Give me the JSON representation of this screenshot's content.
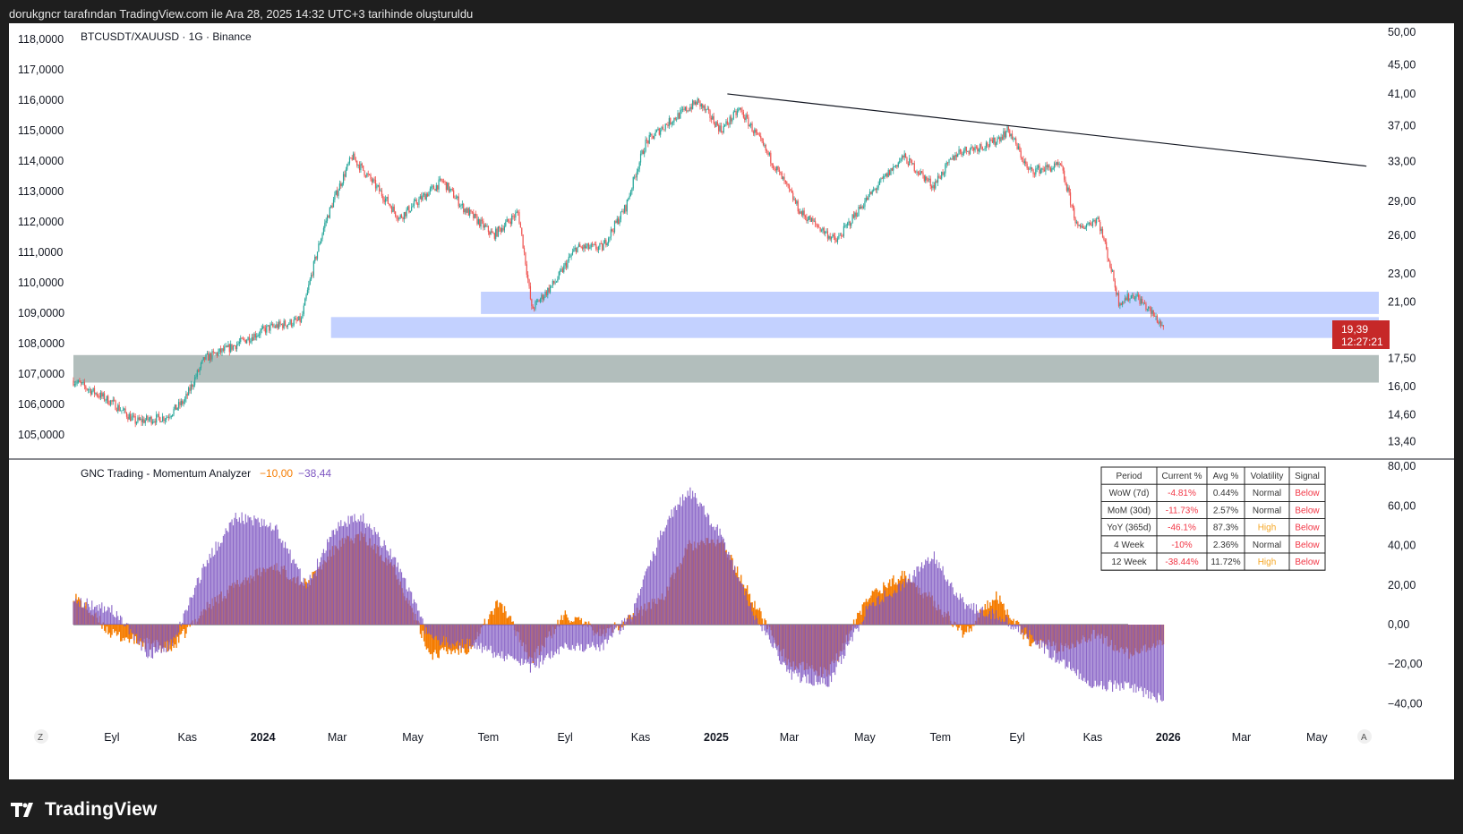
{
  "header": {
    "text": "dorukgncr tarafından TradingView.com ile Ara 28, 2025 14:32 UTC+3 tarihinde oluşturuldu"
  },
  "main_pane": {
    "title": "BTCUSDT/XAUUSD · 1G · Binance",
    "price_badge": {
      "value": "19,39",
      "countdown": "12:27:21"
    }
  },
  "indicator": {
    "title": "GNC Trading - Momentum Analyzer",
    "value1": "−10,00",
    "value2": "−38,44"
  },
  "table": {
    "headers": [
      "Period",
      "Current %",
      "Avg %",
      "Volatility",
      "Signal"
    ],
    "rows": [
      [
        "WoW (7d)",
        "-4.81%",
        "0.44%",
        "Normal",
        "Below"
      ],
      [
        "MoM (30d)",
        "-11.73%",
        "2.57%",
        "Normal",
        "Below"
      ],
      [
        "YoY (365d)",
        "-46.1%",
        "87.3%",
        "High",
        "Below"
      ],
      [
        "4 Week",
        "-10%",
        "2.36%",
        "Normal",
        "Below"
      ],
      [
        "12 Week",
        "-38.44%",
        "11.72%",
        "High",
        "Below"
      ]
    ]
  },
  "bottom_axis": {
    "left_button": "Z",
    "right_button": "A"
  },
  "logo": {
    "text": "TradingView"
  },
  "colors": {
    "up": "#26a69a",
    "down": "#ef5350",
    "orange": "#f57c00",
    "purple": "#7e57c2",
    "blue_zone": "#c3d1ff",
    "gray_zone": "#b2bebc",
    "badge": "#c62828",
    "red_text": "#f23645",
    "orange_text": "#f5a623"
  },
  "chart_data": [
    {
      "type": "candlestick",
      "title": "BTCUSDT/XAUUSD · 1G · Binance",
      "left_axis_ticks": [
        "118,0000",
        "117,0000",
        "116,0000",
        "115,0000",
        "114,0000",
        "113,0000",
        "112,0000",
        "111,0000",
        "110,0000",
        "109,0000",
        "108,0000",
        "107,0000",
        "106,0000",
        "105,0000"
      ],
      "right_axis_ticks": [
        "50,00",
        "45,00",
        "41,00",
        "37,00",
        "33,00",
        "29,00",
        "26,00",
        "23,00",
        "21,00",
        "17,50",
        "16,00",
        "14,60",
        "13,40"
      ],
      "right_scale": "log",
      "y_range": [
        13.0,
        50.0
      ],
      "x_labels": [
        "Eyl",
        "Kas",
        "2024",
        "Mar",
        "May",
        "Tem",
        "Eyl",
        "Kas",
        "2025",
        "Mar",
        "May",
        "Tem",
        "Eyl",
        "Kas",
        "2026",
        "Mar",
        "May"
      ],
      "x_range": [
        "2023-08-01",
        "2026-06-20"
      ],
      "series": [
        {
          "dates": [
            "2023-08-01",
            "2023-09-01",
            "2023-09-20",
            "2023-10-15",
            "2023-10-30",
            "2023-11-15",
            "2023-12-05",
            "2024-01-05",
            "2024-02-01",
            "2024-02-20",
            "2024-03-13",
            "2024-04-01",
            "2024-04-20",
            "2024-05-10",
            "2024-05-25",
            "2024-06-10",
            "2024-07-05",
            "2024-07-25",
            "2024-08-05",
            "2024-08-25",
            "2024-09-10",
            "2024-10-01",
            "2024-10-20",
            "2024-11-05",
            "2024-11-20",
            "2024-12-17",
            "2025-01-05",
            "2025-01-20",
            "2025-02-15",
            "2025-03-10",
            "2025-04-08",
            "2025-05-01",
            "2025-06-01",
            "2025-06-25",
            "2025-07-15",
            "2025-08-12",
            "2025-08-25",
            "2025-09-10",
            "2025-10-06",
            "2025-10-20",
            "2025-11-05",
            "2025-11-22",
            "2025-12-05",
            "2025-12-28"
          ],
          "values": [
            16.3,
            15.2,
            14.3,
            14.5,
            15.3,
            17.5,
            18.1,
            19.3,
            19.8,
            27.0,
            33.5,
            30.5,
            27.5,
            29.5,
            31.0,
            28.5,
            26.0,
            28.0,
            20.5,
            22.5,
            25.0,
            25.0,
            28.5,
            35.0,
            37.0,
            40.0,
            36.5,
            39.0,
            33.0,
            28.0,
            25.5,
            29.0,
            33.5,
            30.5,
            34.0,
            35.0,
            36.5,
            32.0,
            32.5,
            26.5,
            27.5,
            21.0,
            21.5,
            19.39
          ]
        }
      ],
      "zones": [
        {
          "from": "2024-06-25",
          "to": "2026-06-20",
          "low": 20.2,
          "high": 21.7
        },
        {
          "from": "2024-02-25",
          "to": "2026-06-20",
          "low": 18.7,
          "high": 20.0
        },
        {
          "from": "2023-08-01",
          "to": "2026-06-20",
          "low": 16.2,
          "high": 17.7
        }
      ],
      "trendline": {
        "from": [
          "2025-01-10",
          41.0
        ],
        "to": [
          "2026-06-10",
          32.5
        ]
      },
      "last_value": 19.39
    },
    {
      "type": "histogram",
      "title": "GNC Trading - Momentum Analyzer",
      "y_ticks": [
        "80,00",
        "60,00",
        "40,00",
        "20,00",
        "0,00",
        "−20,00",
        "−40,00"
      ],
      "y_range": [
        -42,
        80
      ],
      "series": [
        {
          "name": "−10,00",
          "color": "#f57c00",
          "dates": [
            "2023-08-01",
            "2023-09-01",
            "2023-10-01",
            "2023-10-20",
            "2023-11-15",
            "2023-12-10",
            "2024-01-10",
            "2024-02-05",
            "2024-03-01",
            "2024-03-20",
            "2024-04-15",
            "2024-05-15",
            "2024-06-15",
            "2024-07-10",
            "2024-08-05",
            "2024-09-01",
            "2024-10-01",
            "2024-10-25",
            "2024-11-20",
            "2024-12-10",
            "2025-01-05",
            "2025-02-01",
            "2025-03-01",
            "2025-04-01",
            "2025-05-05",
            "2025-06-01",
            "2025-06-25",
            "2025-07-20",
            "2025-08-15",
            "2025-09-10",
            "2025-10-05",
            "2025-11-01",
            "2025-12-01",
            "2025-12-28"
          ],
          "values": [
            15,
            -5,
            -10,
            -12,
            8,
            20,
            30,
            20,
            40,
            45,
            30,
            -15,
            -12,
            12,
            -18,
            5,
            -5,
            4,
            15,
            40,
            42,
            10,
            -20,
            -25,
            15,
            25,
            12,
            -5,
            15,
            -8,
            -12,
            -5,
            -15,
            -10
          ]
        },
        {
          "name": "−38,44",
          "color": "#7e57c2",
          "dates": [
            "2023-08-01",
            "2023-09-01",
            "2023-10-01",
            "2023-10-20",
            "2023-11-15",
            "2023-12-10",
            "2024-01-10",
            "2024-02-05",
            "2024-03-01",
            "2024-03-20",
            "2024-04-15",
            "2024-05-15",
            "2024-06-15",
            "2024-07-10",
            "2024-08-05",
            "2024-09-01",
            "2024-10-01",
            "2024-10-25",
            "2024-11-20",
            "2024-12-10",
            "2025-01-05",
            "2025-02-01",
            "2025-03-01",
            "2025-04-01",
            "2025-05-05",
            "2025-06-01",
            "2025-06-25",
            "2025-07-20",
            "2025-08-15",
            "2025-09-10",
            "2025-10-05",
            "2025-11-01",
            "2025-12-01",
            "2025-12-28"
          ],
          "values": [
            12,
            8,
            -15,
            -10,
            30,
            55,
            50,
            20,
            50,
            55,
            35,
            -8,
            -10,
            -15,
            -22,
            -10,
            -12,
            5,
            50,
            68,
            45,
            5,
            -25,
            -30,
            10,
            20,
            35,
            10,
            5,
            -5,
            -18,
            -30,
            -32,
            -38.44
          ]
        }
      ]
    }
  ]
}
